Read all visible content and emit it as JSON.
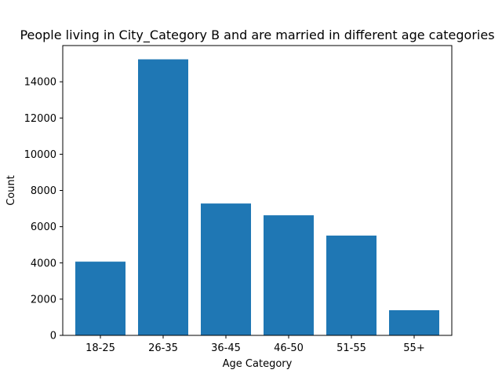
{
  "chart_data": {
    "type": "bar",
    "title": "People living in City_Category B and are married in different age categories",
    "xlabel": "Age Category",
    "ylabel": "Count",
    "categories": [
      "18-25",
      "26-35",
      "36-45",
      "46-50",
      "51-55",
      "55+"
    ],
    "values": [
      4070,
      15240,
      7280,
      6630,
      5510,
      1390
    ],
    "ylim": [
      0,
      16000
    ],
    "yticks": [
      0,
      2000,
      4000,
      6000,
      8000,
      10000,
      12000,
      14000
    ],
    "bar_color": "#1f77b4",
    "grid": false,
    "legend": false
  }
}
